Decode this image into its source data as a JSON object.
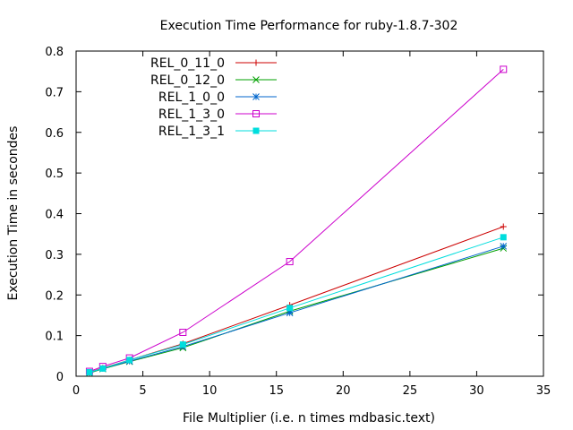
{
  "chart_data": {
    "type": "line",
    "title": "Execution Time Performance for ruby-1.8.7-302",
    "xlabel": "File Multiplier (i.e. n times mdbasic.text)",
    "ylabel": "Execution Time in secondes",
    "xlim": [
      0,
      35
    ],
    "ylim": [
      0,
      0.8
    ],
    "xticks": [
      0,
      5,
      10,
      15,
      20,
      25,
      30,
      35
    ],
    "yticks": [
      0,
      0.1,
      0.2,
      0.3,
      0.4,
      0.5,
      0.6,
      0.7,
      0.8
    ],
    "xtick_labels": [
      "0",
      "5",
      "10",
      "15",
      "20",
      "25",
      "30",
      "35"
    ],
    "ytick_labels": [
      "0",
      "0.1",
      "0.2",
      "0.3",
      "0.4",
      "0.5",
      "0.6",
      "0.7",
      "0.8"
    ],
    "grid": false,
    "legend_position": "top-left",
    "x": [
      1,
      2,
      4,
      8,
      16,
      32
    ],
    "series": [
      {
        "name": "REL_0_11_0",
        "color": "#cc0000",
        "marker": "plus",
        "values": [
          0.01,
          0.02,
          0.04,
          0.08,
          0.175,
          0.368
        ]
      },
      {
        "name": "REL_0_12_0",
        "color": "#00a000",
        "marker": "cross",
        "values": [
          0.008,
          0.018,
          0.036,
          0.07,
          0.16,
          0.315
        ]
      },
      {
        "name": "REL_1_0_0",
        "color": "#0066cc",
        "marker": "star",
        "values": [
          0.009,
          0.019,
          0.037,
          0.073,
          0.156,
          0.32
        ]
      },
      {
        "name": "REL_1_3_0",
        "color": "#cc00cc",
        "marker": "open-square",
        "values": [
          0.012,
          0.024,
          0.045,
          0.108,
          0.282,
          0.755
        ]
      },
      {
        "name": "REL_1_3_1",
        "color": "#00dddd",
        "marker": "filled-square",
        "values": [
          0.01,
          0.019,
          0.04,
          0.078,
          0.168,
          0.342
        ]
      }
    ]
  }
}
